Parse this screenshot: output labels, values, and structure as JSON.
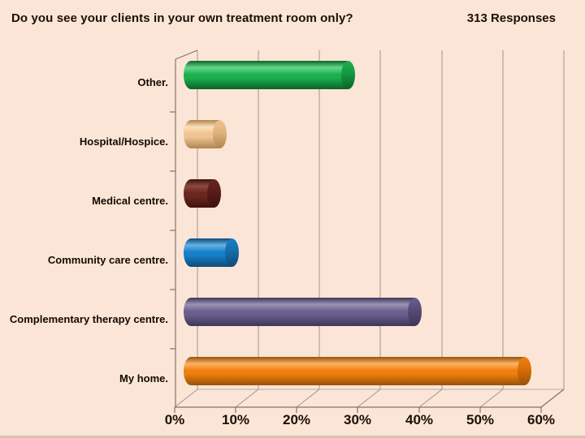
{
  "header": {
    "title": "Do you see your clients in your own treatment room only?",
    "responses_label": "313 Responses"
  },
  "chart_data": {
    "type": "bar",
    "orientation": "horizontal",
    "title": "Do you see your clients in your own treatment room only?",
    "subtitle": "313 Responses",
    "responses_count": 313,
    "categories": [
      "Other.",
      "Hospital/Hospice.",
      "Medical centre.",
      "Community care centre.",
      "Complementary therapy centre.",
      "My home."
    ],
    "values": [
      27,
      6,
      5,
      8,
      38,
      56
    ],
    "unit": "%",
    "xlim": [
      0,
      60
    ],
    "x_tick_labels": [
      "0%",
      "10%",
      "20%",
      "30%",
      "40%",
      "50%",
      "60%"
    ],
    "grid": true,
    "legend": "none",
    "style": "3d-cylinder",
    "background_color": "#fbe5d6",
    "bar_colors": [
      {
        "name": "green",
        "light": "#66d88c",
        "main": "#1caf4e",
        "dark": "#0a6327",
        "cap": "#13993f"
      },
      {
        "name": "tan",
        "light": "#fbe0bb",
        "main": "#efc392",
        "dark": "#b0854f",
        "cap": "#dfb27e"
      },
      {
        "name": "maroon",
        "light": "#8a4a42",
        "main": "#6b2620",
        "dark": "#3f110d",
        "cap": "#571d18"
      },
      {
        "name": "blue",
        "light": "#64b2e6",
        "main": "#157fc9",
        "dark": "#0d4a77",
        "cap": "#166cab"
      },
      {
        "name": "purple",
        "light": "#9c93b5",
        "main": "#6a5e8e",
        "dark": "#3f3557",
        "cap": "#564b78"
      },
      {
        "name": "orange",
        "light": "#fbb266",
        "main": "#f07f0e",
        "dark": "#96520a",
        "cap": "#d96d06"
      }
    ]
  }
}
